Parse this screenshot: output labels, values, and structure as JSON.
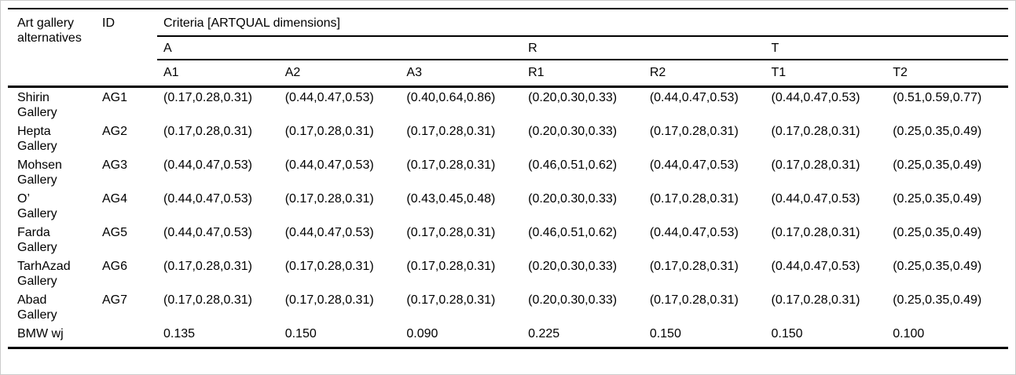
{
  "table": {
    "headers": {
      "alternatives": "Art gallery alternatives",
      "id": "ID",
      "criteria": "Criteria [ARTQUAL dimensions]"
    },
    "groups": [
      {
        "label": "A",
        "span": 3
      },
      {
        "label": "R",
        "span": 2
      },
      {
        "label": "T",
        "span": 2
      }
    ],
    "subheaders": [
      "A1",
      "A2",
      "A3",
      "R1",
      "R2",
      "T1",
      "T2"
    ],
    "rows": [
      {
        "name": "Shirin\nGallery",
        "id": "AG1",
        "values": [
          "(0.17,0.28,0.31)",
          "(0.44,0.47,0.53)",
          "(0.40,0.64,0.86)",
          "(0.20,0.30,0.33)",
          "(0.44,0.47,0.53)",
          "(0.44,0.47,0.53)",
          "(0.51,0.59,0.77)"
        ]
      },
      {
        "name": "Hepta\nGallery",
        "id": "AG2",
        "values": [
          "(0.17,0.28,0.31)",
          "(0.17,0.28,0.31)",
          "(0.17,0.28,0.31)",
          "(0.20,0.30,0.33)",
          "(0.17,0.28,0.31)",
          "(0.17,0.28,0.31)",
          "(0.25,0.35,0.49)"
        ]
      },
      {
        "name": "Mohsen\nGallery",
        "id": "AG3",
        "values": [
          "(0.44,0.47,0.53)",
          "(0.44,0.47,0.53)",
          "(0.17,0.28,0.31)",
          "(0.46,0.51,0.62)",
          "(0.44,0.47,0.53)",
          "(0.17,0.28,0.31)",
          "(0.25,0.35,0.49)"
        ]
      },
      {
        "name": "O’\nGallery",
        "id": "AG4",
        "values": [
          "(0.44,0.47,0.53)",
          "(0.17,0.28,0.31)",
          "(0.43,0.45,0.48)",
          "(0.20,0.30,0.33)",
          "(0.17,0.28,0.31)",
          "(0.44,0.47,0.53)",
          "(0.25,0.35,0.49)"
        ]
      },
      {
        "name": "Farda\nGallery",
        "id": "AG5",
        "values": [
          "(0.44,0.47,0.53)",
          "(0.44,0.47,0.53)",
          "(0.17,0.28,0.31)",
          "(0.46,0.51,0.62)",
          "(0.44,0.47,0.53)",
          "(0.17,0.28,0.31)",
          "(0.25,0.35,0.49)"
        ]
      },
      {
        "name": "TarhAzad\nGallery",
        "id": "AG6",
        "values": [
          "(0.17,0.28,0.31)",
          "(0.17,0.28,0.31)",
          "(0.17,0.28,0.31)",
          "(0.20,0.30,0.33)",
          "(0.17,0.28,0.31)",
          "(0.44,0.47,0.53)",
          "(0.25,0.35,0.49)"
        ]
      },
      {
        "name": "Abad\nGallery",
        "id": "AG7",
        "values": [
          "(0.17,0.28,0.31)",
          "(0.17,0.28,0.31)",
          "(0.17,0.28,0.31)",
          "(0.20,0.30,0.33)",
          "(0.17,0.28,0.31)",
          "(0.17,0.28,0.31)",
          "(0.25,0.35,0.49)"
        ]
      },
      {
        "name": "BMW wj",
        "id": "",
        "values": [
          "0.135",
          "0.150",
          "0.090",
          "0.225",
          "0.150",
          "0.150",
          "0.100"
        ]
      }
    ]
  }
}
